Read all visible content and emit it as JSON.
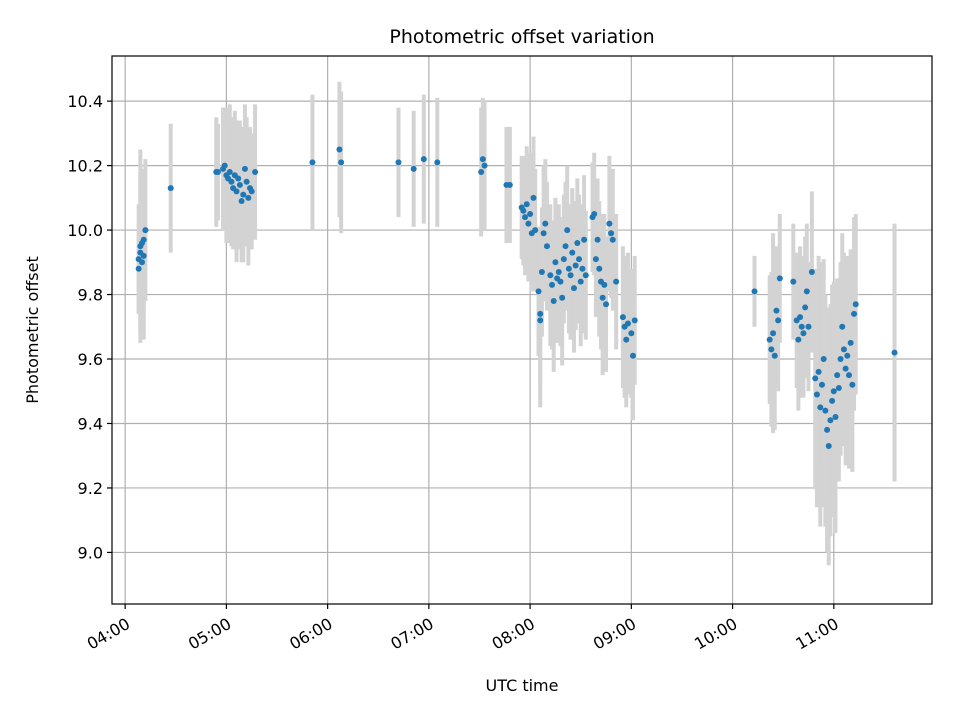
{
  "chart_data": {
    "type": "scatter",
    "title": "Photometric offset variation",
    "xlabel": "UTC time",
    "ylabel": "Photometric offset",
    "x_tick_labels": [
      "04:00",
      "05:00",
      "06:00",
      "07:00",
      "08:00",
      "09:00",
      "10:00",
      "11:00"
    ],
    "y_tick_labels": [
      "9.0",
      "9.2",
      "9.4",
      "9.6",
      "9.8",
      "10.0",
      "10.2",
      "10.4"
    ],
    "y_ticks": [
      9.0,
      9.2,
      9.4,
      9.6,
      9.8,
      10.0,
      10.2,
      10.4
    ],
    "xlim_hours": [
      3.87,
      11.97
    ],
    "ylim": [
      8.84,
      10.54
    ],
    "grid": true,
    "colors": {
      "points": "#1f77b4",
      "errorbars": "#d3d3d3",
      "grid": "#b0b0b0"
    },
    "series": [
      {
        "points": [
          {
            "t": "04:08",
            "y": 9.88,
            "err": 0.14
          },
          {
            "t": "04:08",
            "y": 9.91,
            "err": 0.17
          },
          {
            "t": "04:09",
            "y": 9.93,
            "err": 0.25
          },
          {
            "t": "04:09",
            "y": 9.95,
            "err": 0.3
          },
          {
            "t": "04:10",
            "y": 9.9,
            "err": 0.2
          },
          {
            "t": "04:10",
            "y": 9.96,
            "err": 0.22
          },
          {
            "t": "04:11",
            "y": 9.97,
            "err": 0.22
          },
          {
            "t": "04:11",
            "y": 9.92,
            "err": 0.26
          },
          {
            "t": "04:12",
            "y": 10.0,
            "err": 0.22
          },
          {
            "t": "04:27",
            "y": 10.13,
            "err": 0.2
          },
          {
            "t": "04:54",
            "y": 10.18,
            "err": 0.17
          },
          {
            "t": "04:55",
            "y": 10.18,
            "err": 0.15
          },
          {
            "t": "04:58",
            "y": 10.19,
            "err": 0.19
          },
          {
            "t": "04:59",
            "y": 10.2,
            "err": 0.18
          },
          {
            "t": "05:00",
            "y": 10.17,
            "err": 0.21
          },
          {
            "t": "05:01",
            "y": 10.16,
            "err": 0.2
          },
          {
            "t": "05:02",
            "y": 10.18,
            "err": 0.21
          },
          {
            "t": "05:03",
            "y": 10.15,
            "err": 0.2
          },
          {
            "t": "05:04",
            "y": 10.13,
            "err": 0.19
          },
          {
            "t": "05:05",
            "y": 10.17,
            "err": 0.2
          },
          {
            "t": "05:06",
            "y": 10.12,
            "err": 0.22
          },
          {
            "t": "05:07",
            "y": 10.16,
            "err": 0.18
          },
          {
            "t": "05:08",
            "y": 10.14,
            "err": 0.2
          },
          {
            "t": "05:09",
            "y": 10.09,
            "err": 0.19
          },
          {
            "t": "05:10",
            "y": 10.11,
            "err": 0.21
          },
          {
            "t": "05:11",
            "y": 10.19,
            "err": 0.2
          },
          {
            "t": "05:12",
            "y": 10.15,
            "err": 0.2
          },
          {
            "t": "05:13",
            "y": 10.1,
            "err": 0.21
          },
          {
            "t": "05:14",
            "y": 10.13,
            "err": 0.19
          },
          {
            "t": "05:15",
            "y": 10.12,
            "err": 0.18
          },
          {
            "t": "05:17",
            "y": 10.18,
            "err": 0.21
          },
          {
            "t": "05:51",
            "y": 10.21,
            "err": 0.21
          },
          {
            "t": "06:07",
            "y": 10.25,
            "err": 0.21
          },
          {
            "t": "06:08",
            "y": 10.21,
            "err": 0.22
          },
          {
            "t": "06:42",
            "y": 10.21,
            "err": 0.17
          },
          {
            "t": "06:51",
            "y": 10.19,
            "err": 0.18
          },
          {
            "t": "06:57",
            "y": 10.22,
            "err": 0.2
          },
          {
            "t": "07:05",
            "y": 10.21,
            "err": 0.2
          },
          {
            "t": "07:31",
            "y": 10.18,
            "err": 0.2
          },
          {
            "t": "07:32",
            "y": 10.22,
            "err": 0.19
          },
          {
            "t": "07:33",
            "y": 10.2,
            "err": 0.2
          },
          {
            "t": "07:46",
            "y": 10.14,
            "err": 0.18
          },
          {
            "t": "07:48",
            "y": 10.14,
            "err": 0.18
          },
          {
            "t": "07:55",
            "y": 10.07,
            "err": 0.16
          },
          {
            "t": "07:56",
            "y": 10.06,
            "err": 0.17
          },
          {
            "t": "07:57",
            "y": 10.04,
            "err": 0.18
          },
          {
            "t": "07:58",
            "y": 10.08,
            "err": 0.18
          },
          {
            "t": "07:59",
            "y": 10.02,
            "err": 0.18
          },
          {
            "t": "08:00",
            "y": 10.05,
            "err": 0.19
          },
          {
            "t": "08:01",
            "y": 9.99,
            "err": 0.18
          },
          {
            "t": "08:02",
            "y": 10.1,
            "err": 0.19
          },
          {
            "t": "08:03",
            "y": 10.0,
            "err": 0.19
          },
          {
            "t": "08:05",
            "y": 9.81,
            "err": 0.2
          },
          {
            "t": "08:06",
            "y": 9.74,
            "err": 0.22
          },
          {
            "t": "08:06",
            "y": 9.72,
            "err": 0.27
          },
          {
            "t": "08:07",
            "y": 9.87,
            "err": 0.2
          },
          {
            "t": "08:08",
            "y": 9.99,
            "err": 0.21
          },
          {
            "t": "08:09",
            "y": 10.02,
            "err": 0.2
          },
          {
            "t": "08:10",
            "y": 9.95,
            "err": 0.2
          },
          {
            "t": "08:12",
            "y": 9.86,
            "err": 0.22
          },
          {
            "t": "08:13",
            "y": 9.83,
            "err": 0.2
          },
          {
            "t": "08:14",
            "y": 9.78,
            "err": 0.22
          },
          {
            "t": "08:15",
            "y": 9.9,
            "err": 0.2
          },
          {
            "t": "08:16",
            "y": 9.85,
            "err": 0.2
          },
          {
            "t": "08:17",
            "y": 9.87,
            "err": 0.21
          },
          {
            "t": "08:18",
            "y": 9.84,
            "err": 0.2
          },
          {
            "t": "08:19",
            "y": 9.79,
            "err": 0.21
          },
          {
            "t": "08:20",
            "y": 9.91,
            "err": 0.2
          },
          {
            "t": "08:21",
            "y": 9.95,
            "err": 0.2
          },
          {
            "t": "08:22",
            "y": 10.0,
            "err": 0.2
          },
          {
            "t": "08:23",
            "y": 9.88,
            "err": 0.2
          },
          {
            "t": "08:24",
            "y": 9.86,
            "err": 0.2
          },
          {
            "t": "08:25",
            "y": 9.93,
            "err": 0.2
          },
          {
            "t": "08:26",
            "y": 9.82,
            "err": 0.2
          },
          {
            "t": "08:27",
            "y": 9.89,
            "err": 0.2
          },
          {
            "t": "08:28",
            "y": 9.96,
            "err": 0.2
          },
          {
            "t": "08:29",
            "y": 9.91,
            "err": 0.2
          },
          {
            "t": "08:30",
            "y": 9.84,
            "err": 0.2
          },
          {
            "t": "08:31",
            "y": 9.88,
            "err": 0.2
          },
          {
            "t": "08:32",
            "y": 9.97,
            "err": 0.2
          },
          {
            "t": "08:33",
            "y": 9.86,
            "err": 0.2
          },
          {
            "t": "08:37",
            "y": 10.04,
            "err": 0.17
          },
          {
            "t": "08:38",
            "y": 10.05,
            "err": 0.19
          },
          {
            "t": "08:39",
            "y": 9.91,
            "err": 0.18
          },
          {
            "t": "08:40",
            "y": 9.97,
            "err": 0.19
          },
          {
            "t": "08:41",
            "y": 9.88,
            "err": 0.21
          },
          {
            "t": "08:42",
            "y": 9.84,
            "err": 0.21
          },
          {
            "t": "08:43",
            "y": 9.79,
            "err": 0.24
          },
          {
            "t": "08:44",
            "y": 9.83,
            "err": 0.22
          },
          {
            "t": "08:45",
            "y": 9.77,
            "err": 0.21
          },
          {
            "t": "08:47",
            "y": 10.02,
            "err": 0.21
          },
          {
            "t": "08:48",
            "y": 9.99,
            "err": 0.2
          },
          {
            "t": "08:49",
            "y": 9.97,
            "err": 0.22
          },
          {
            "t": "08:51",
            "y": 9.84,
            "err": 0.21
          },
          {
            "t": "08:55",
            "y": 9.73,
            "err": 0.22
          },
          {
            "t": "08:56",
            "y": 9.7,
            "err": 0.22
          },
          {
            "t": "08:57",
            "y": 9.66,
            "err": 0.21
          },
          {
            "t": "08:58",
            "y": 9.71,
            "err": 0.22
          },
          {
            "t": "09:00",
            "y": 9.68,
            "err": 0.2
          },
          {
            "t": "09:01",
            "y": 9.61,
            "err": 0.2
          },
          {
            "t": "09:02",
            "y": 9.72,
            "err": 0.2
          },
          {
            "t": "10:13",
            "y": 9.81,
            "err": 0.11
          },
          {
            "t": "10:22",
            "y": 9.66,
            "err": 0.2
          },
          {
            "t": "10:23",
            "y": 9.63,
            "err": 0.24
          },
          {
            "t": "10:24",
            "y": 9.68,
            "err": 0.31
          },
          {
            "t": "10:25",
            "y": 9.61,
            "err": 0.23
          },
          {
            "t": "10:26",
            "y": 9.75,
            "err": 0.2
          },
          {
            "t": "10:27",
            "y": 9.72,
            "err": 0.22
          },
          {
            "t": "10:28",
            "y": 9.85,
            "err": 0.2
          },
          {
            "t": "10:36",
            "y": 9.84,
            "err": 0.18
          },
          {
            "t": "10:38",
            "y": 9.72,
            "err": 0.21
          },
          {
            "t": "10:39",
            "y": 9.66,
            "err": 0.22
          },
          {
            "t": "10:40",
            "y": 9.73,
            "err": 0.22
          },
          {
            "t": "10:41",
            "y": 9.7,
            "err": 0.22
          },
          {
            "t": "10:42",
            "y": 9.68,
            "err": 0.2
          },
          {
            "t": "10:43",
            "y": 9.76,
            "err": 0.22
          },
          {
            "t": "10:44",
            "y": 9.81,
            "err": 0.21
          },
          {
            "t": "10:45",
            "y": 9.7,
            "err": 0.2
          },
          {
            "t": "10:47",
            "y": 9.87,
            "err": 0.25
          },
          {
            "t": "10:49",
            "y": 9.54,
            "err": 0.34
          },
          {
            "t": "10:50",
            "y": 9.49,
            "err": 0.35
          },
          {
            "t": "10:51",
            "y": 9.56,
            "err": 0.36
          },
          {
            "t": "10:52",
            "y": 9.45,
            "err": 0.37
          },
          {
            "t": "10:53",
            "y": 9.52,
            "err": 0.38
          },
          {
            "t": "10:54",
            "y": 9.6,
            "err": 0.31
          },
          {
            "t": "10:55",
            "y": 9.44,
            "err": 0.36
          },
          {
            "t": "10:56",
            "y": 9.38,
            "err": 0.38
          },
          {
            "t": "10:57",
            "y": 9.33,
            "err": 0.37
          },
          {
            "t": "10:58",
            "y": 9.41,
            "err": 0.36
          },
          {
            "t": "10:59",
            "y": 9.47,
            "err": 0.36
          },
          {
            "t": "11:00",
            "y": 9.5,
            "err": 0.34
          },
          {
            "t": "11:01",
            "y": 9.42,
            "err": 0.36
          },
          {
            "t": "11:02",
            "y": 9.55,
            "err": 0.3
          },
          {
            "t": "11:03",
            "y": 9.51,
            "err": 0.29
          },
          {
            "t": "11:04",
            "y": 9.6,
            "err": 0.3
          },
          {
            "t": "11:05",
            "y": 9.7,
            "err": 0.29
          },
          {
            "t": "11:06",
            "y": 9.63,
            "err": 0.3
          },
          {
            "t": "11:07",
            "y": 9.57,
            "err": 0.3
          },
          {
            "t": "11:08",
            "y": 9.61,
            "err": 0.31
          },
          {
            "t": "11:09",
            "y": 9.55,
            "err": 0.29
          },
          {
            "t": "11:10",
            "y": 9.65,
            "err": 0.29
          },
          {
            "t": "11:11",
            "y": 9.52,
            "err": 0.27
          },
          {
            "t": "11:12",
            "y": 9.74,
            "err": 0.3
          },
          {
            "t": "11:13",
            "y": 9.77,
            "err": 0.28
          },
          {
            "t": "11:36",
            "y": 9.62,
            "err": 0.4
          }
        ]
      }
    ]
  }
}
